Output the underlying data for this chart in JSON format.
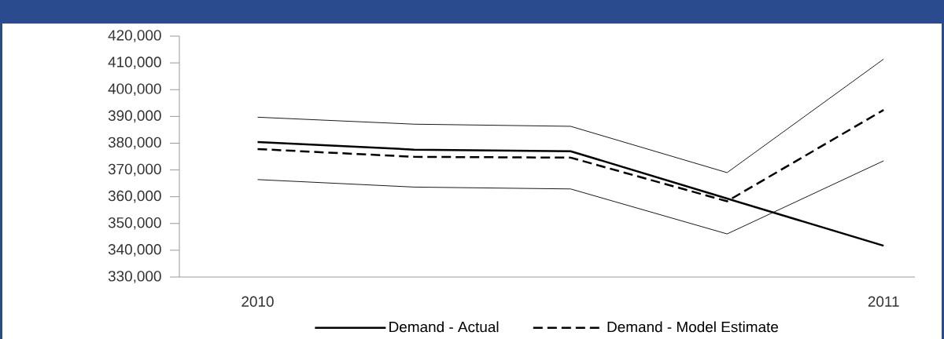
{
  "chart_data": {
    "type": "line",
    "categories": [
      "2010",
      null,
      null,
      null,
      "2011"
    ],
    "series": [
      {
        "name": "Demand - Actual",
        "color": "#000000",
        "line_style": "solid",
        "values": [
          380400,
          377600,
          377000,
          359300,
          341700
        ]
      },
      {
        "name": "Demand - Model Estimate",
        "color": "#000000",
        "line_style": "dashed",
        "values": [
          377800,
          374900,
          374600,
          358300,
          392400
        ]
      },
      {
        "color": "#000000",
        "line_style": "solid",
        "values": [
          389700,
          387100,
          386300,
          369000,
          411400
        ]
      },
      {
        "color": "#000000",
        "line_style": "solid",
        "values": [
          366400,
          363600,
          362900,
          346100,
          373400
        ]
      }
    ],
    "ylim": [
      330000,
      420000
    ],
    "yticks": [
      {
        "value": 330000,
        "label": "330,000"
      },
      {
        "value": 340000,
        "label": "340,000"
      },
      {
        "value": 350000,
        "label": "350,000"
      },
      {
        "value": 360000,
        "label": "360,000"
      },
      {
        "value": 370000,
        "label": "370,000"
      },
      {
        "value": 380000,
        "label": "380,000"
      },
      {
        "value": 390000,
        "label": "390,000"
      },
      {
        "value": 400000,
        "label": "400,000"
      },
      {
        "value": 410000,
        "label": "410,000"
      },
      {
        "value": 420000,
        "label": "420,000"
      }
    ],
    "grid": false,
    "legend": "bottom",
    "marker": "none"
  }
}
